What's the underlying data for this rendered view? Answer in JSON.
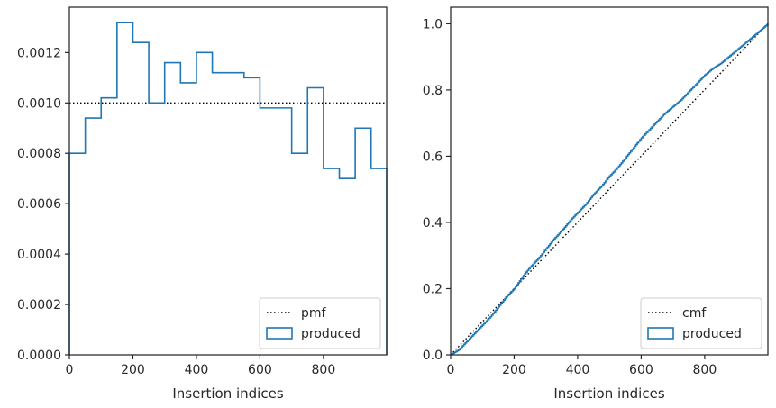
{
  "chart_data": [
    {
      "type": "histogram",
      "xlabel": "Insertion indices",
      "ylabel": "",
      "xlim": [
        0,
        999
      ],
      "ylim": [
        0,
        0.00138
      ],
      "x_ticks": [
        0,
        200,
        400,
        600,
        800
      ],
      "x_tick_labels": [
        "0",
        "200",
        "400",
        "600",
        "800"
      ],
      "y_ticks": [
        0,
        0.0002,
        0.0004,
        0.0006,
        0.0008,
        0.001,
        0.0012
      ],
      "y_tick_labels": [
        "0.0000",
        "0.0002",
        "0.0004",
        "0.0006",
        "0.0008",
        "0.0010",
        "0.0012"
      ],
      "legend_position": "lower-right",
      "series": [
        {
          "name": "pmf",
          "kind": "hline",
          "value": 0.001,
          "color": "#000000",
          "style": "dotted"
        },
        {
          "name": "produced",
          "kind": "step-histogram",
          "color": "#1f77b4",
          "bin_edges": [
            0,
            50,
            100,
            150,
            200,
            250,
            300,
            350,
            400,
            450,
            500,
            550,
            600,
            650,
            700,
            750,
            800,
            850,
            900,
            950,
            999
          ],
          "values": [
            0.0008,
            0.00094,
            0.00102,
            0.00132,
            0.00124,
            0.001,
            0.00116,
            0.00108,
            0.0012,
            0.00112,
            0.00112,
            0.0011,
            0.00098,
            0.00098,
            0.0008,
            0.00106,
            0.00074,
            0.0007,
            0.0009,
            0.00074
          ]
        }
      ]
    },
    {
      "type": "line",
      "xlabel": "Insertion indices",
      "ylabel": "",
      "xlim": [
        0,
        999
      ],
      "ylim": [
        0,
        1.05
      ],
      "x_ticks": [
        0,
        200,
        400,
        600,
        800
      ],
      "x_tick_labels": [
        "0",
        "200",
        "400",
        "600",
        "800"
      ],
      "y_ticks": [
        0,
        0.2,
        0.4,
        0.6,
        0.8,
        1.0
      ],
      "y_tick_labels": [
        "0.0",
        "0.2",
        "0.4",
        "0.6",
        "0.8",
        "1.0"
      ],
      "legend_position": "lower-right",
      "series": [
        {
          "name": "cmf",
          "kind": "line",
          "color": "#000000",
          "style": "dotted",
          "x": [
            0,
            999
          ],
          "y": [
            0,
            1.0
          ]
        },
        {
          "name": "produced",
          "kind": "step-line",
          "color": "#1f77b4",
          "x": [
            0,
            25,
            50,
            75,
            100,
            125,
            150,
            175,
            200,
            225,
            250,
            275,
            300,
            325,
            350,
            375,
            400,
            425,
            450,
            475,
            500,
            525,
            550,
            575,
            600,
            625,
            650,
            675,
            700,
            725,
            750,
            775,
            800,
            825,
            850,
            875,
            900,
            925,
            950,
            975,
            999
          ],
          "y": [
            0.0,
            0.015,
            0.04,
            0.065,
            0.09,
            0.115,
            0.145,
            0.175,
            0.2,
            0.235,
            0.265,
            0.29,
            0.32,
            0.35,
            0.375,
            0.405,
            0.43,
            0.455,
            0.485,
            0.51,
            0.54,
            0.565,
            0.595,
            0.625,
            0.655,
            0.68,
            0.705,
            0.73,
            0.75,
            0.77,
            0.795,
            0.82,
            0.845,
            0.865,
            0.88,
            0.9,
            0.92,
            0.94,
            0.96,
            0.98,
            1.0
          ]
        }
      ]
    }
  ]
}
